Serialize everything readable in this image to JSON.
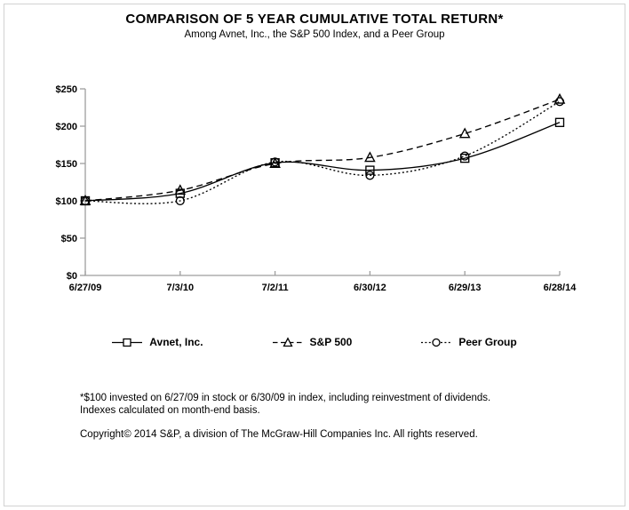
{
  "chart_data": {
    "type": "line",
    "title": "COMPARISON OF 5 YEAR CUMULATIVE TOTAL RETURN*",
    "subtitle": "Among Avnet, Inc., the S&P 500 Index, and a Peer Group",
    "categories": [
      "6/27/09",
      "7/3/10",
      "7/2/11",
      "6/30/12",
      "6/29/13",
      "6/28/14"
    ],
    "series": [
      {
        "name": "Avnet, Inc.",
        "marker": "square",
        "line_style": "solid",
        "values": [
          100,
          110,
          151,
          141,
          157,
          205
        ]
      },
      {
        "name": "S&P 500",
        "marker": "triangle",
        "line_style": "dashed",
        "values": [
          100,
          114,
          150,
          158,
          190,
          236
        ]
      },
      {
        "name": "Peer Group",
        "marker": "circle",
        "line_style": "dotted",
        "values": [
          100,
          100,
          152,
          134,
          160,
          233
        ]
      }
    ],
    "ylim": [
      0,
      250
    ],
    "yticks": [
      {
        "label": "$0",
        "value": 0
      },
      {
        "label": "$50",
        "value": 50
      },
      {
        "label": "$100",
        "value": 100
      },
      {
        "label": "$150",
        "value": 150
      },
      {
        "label": "$200",
        "value": 200
      },
      {
        "label": "$250",
        "value": 250
      }
    ],
    "grid": false,
    "legend_position": "bottom",
    "line_color": "#000000",
    "axis_color": "#9e9e9e"
  },
  "footnotes": {
    "line1": "*$100 invested on 6/27/09 in stock or 6/30/09 in index, including reinvestment of dividends.",
    "line2": "Indexes calculated on month-end basis.",
    "copyright": "Copyright© 2014 S&P, a division of The McGraw-Hill Companies Inc. All rights reserved."
  }
}
